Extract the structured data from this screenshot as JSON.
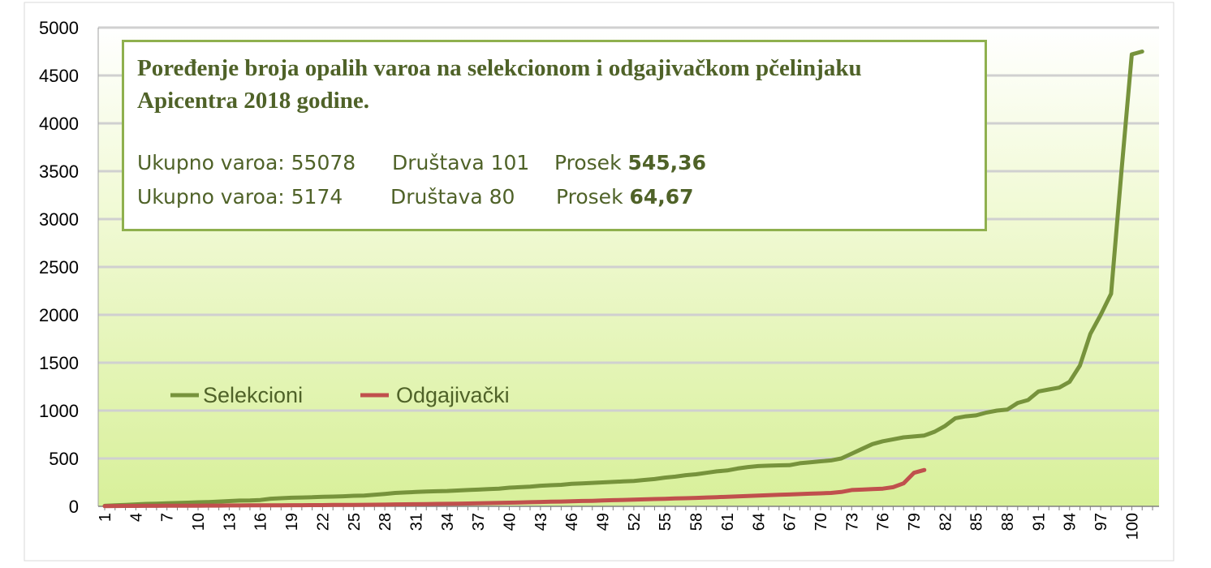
{
  "chart_data": {
    "type": "line",
    "title": "Poređenje broja opalih varoa na selekcionom i odgajivačkom pčelinjaku Apicentra 2018 godine.",
    "summary": [
      {
        "total_label": "Ukupno varoa: 55078",
        "count_label": "Društava 101",
        "avg_prefix": "Prosek",
        "avg_value": "545,36"
      },
      {
        "total_label": "Ukupno varoa: 5174",
        "count_label": "Društava 80",
        "avg_prefix": "Prosek",
        "avg_value": "64,67"
      }
    ],
    "xlabel": "",
    "ylabel": "",
    "ylim": [
      0,
      5000
    ],
    "yticks": [
      0,
      500,
      1000,
      1500,
      2000,
      2500,
      3000,
      3500,
      4000,
      4500,
      5000
    ],
    "xlim": [
      1,
      102
    ],
    "xticks": [
      1,
      4,
      7,
      10,
      13,
      16,
      19,
      22,
      25,
      28,
      31,
      34,
      37,
      40,
      43,
      46,
      49,
      52,
      55,
      58,
      61,
      64,
      67,
      70,
      73,
      76,
      79,
      82,
      85,
      88,
      91,
      94,
      97,
      100
    ],
    "grid": true,
    "legend_position": "middle-left",
    "series": [
      {
        "name": "Selekcioni",
        "color": "#77933c",
        "x": [
          1,
          2,
          3,
          4,
          5,
          6,
          7,
          8,
          9,
          10,
          11,
          12,
          13,
          14,
          15,
          16,
          17,
          18,
          19,
          20,
          21,
          22,
          23,
          24,
          25,
          26,
          27,
          28,
          29,
          30,
          31,
          32,
          33,
          34,
          35,
          36,
          37,
          38,
          39,
          40,
          41,
          42,
          43,
          44,
          45,
          46,
          47,
          48,
          49,
          50,
          51,
          52,
          53,
          54,
          55,
          56,
          57,
          58,
          59,
          60,
          61,
          62,
          63,
          64,
          65,
          66,
          67,
          68,
          69,
          70,
          71,
          72,
          73,
          74,
          75,
          76,
          77,
          78,
          79,
          80,
          81,
          82,
          83,
          84,
          85,
          86,
          87,
          88,
          89,
          90,
          91,
          92,
          93,
          94,
          95,
          96,
          97,
          98,
          99,
          100,
          101
        ],
        "values": [
          5,
          10,
          15,
          20,
          25,
          28,
          32,
          35,
          38,
          42,
          45,
          50,
          55,
          60,
          62,
          66,
          80,
          85,
          90,
          92,
          95,
          100,
          102,
          105,
          110,
          112,
          120,
          130,
          140,
          145,
          150,
          155,
          158,
          160,
          165,
          170,
          175,
          180,
          185,
          195,
          200,
          205,
          215,
          220,
          225,
          235,
          240,
          245,
          250,
          255,
          260,
          265,
          275,
          285,
          300,
          310,
          325,
          335,
          350,
          365,
          375,
          395,
          410,
          420,
          425,
          428,
          430,
          450,
          460,
          470,
          480,
          500,
          550,
          600,
          650,
          680,
          700,
          720,
          730,
          740,
          780,
          840,
          920,
          940,
          950,
          980,
          1000,
          1010,
          1080,
          1110,
          1200,
          1220,
          1240,
          1300,
          1470,
          1800,
          2000,
          2220,
          3500,
          4720,
          4750
        ]
      },
      {
        "name": "Odgajivački",
        "color": "#c0504d",
        "x": [
          1,
          2,
          3,
          4,
          5,
          6,
          7,
          8,
          9,
          10,
          11,
          12,
          13,
          14,
          15,
          16,
          17,
          18,
          19,
          20,
          21,
          22,
          23,
          24,
          25,
          26,
          27,
          28,
          29,
          30,
          31,
          32,
          33,
          34,
          35,
          36,
          37,
          38,
          39,
          40,
          41,
          42,
          43,
          44,
          45,
          46,
          47,
          48,
          49,
          50,
          51,
          52,
          53,
          54,
          55,
          56,
          57,
          58,
          59,
          60,
          61,
          62,
          63,
          64,
          65,
          66,
          67,
          68,
          69,
          70,
          71,
          72,
          73,
          74,
          75,
          76,
          77,
          78,
          79,
          80
        ],
        "values": [
          2,
          3,
          4,
          4,
          5,
          5,
          6,
          6,
          7,
          7,
          8,
          8,
          9,
          9,
          10,
          10,
          11,
          11,
          12,
          12,
          13,
          13,
          14,
          15,
          15,
          16,
          17,
          18,
          20,
          21,
          22,
          23,
          25,
          26,
          28,
          30,
          32,
          34,
          36,
          38,
          40,
          43,
          46,
          48,
          50,
          53,
          56,
          58,
          61,
          64,
          67,
          70,
          73,
          76,
          79,
          82,
          85,
          88,
          92,
          96,
          100,
          104,
          108,
          112,
          116,
          120,
          124,
          128,
          132,
          136,
          140,
          150,
          170,
          175,
          180,
          185,
          200,
          240,
          350,
          380
        ]
      }
    ]
  }
}
